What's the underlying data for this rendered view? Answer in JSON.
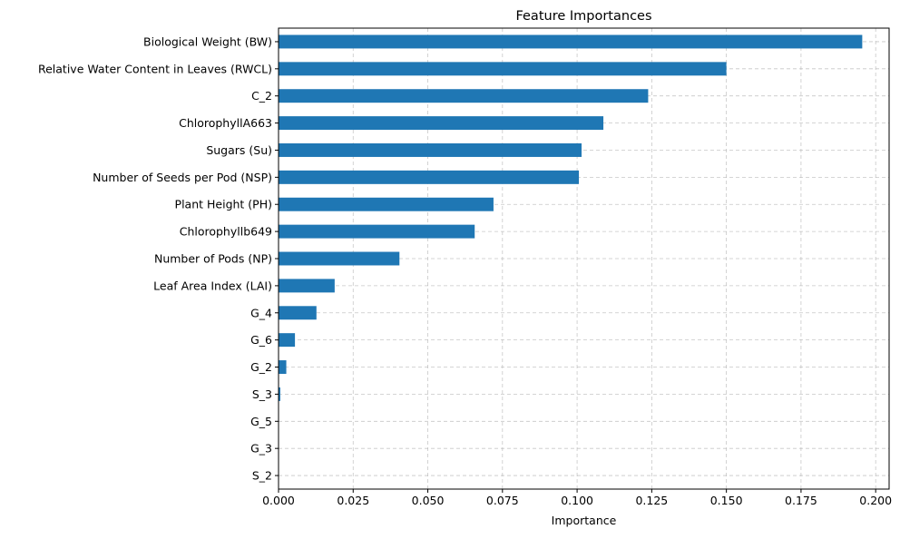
{
  "chart_data": {
    "type": "bar",
    "orientation": "horizontal",
    "title": "Feature Importances",
    "xlabel": "Importance",
    "ylabel": "",
    "xlim": [
      0,
      0.2045
    ],
    "x_ticks": [
      0.0,
      0.025,
      0.05,
      0.075,
      0.1,
      0.125,
      0.15,
      0.175,
      0.2
    ],
    "x_tick_labels": [
      "0.000",
      "0.025",
      "0.050",
      "0.075",
      "0.100",
      "0.125",
      "0.150",
      "0.175",
      "0.200"
    ],
    "grid": true,
    "grid_style": "dashed",
    "legend": "none",
    "bar_color": "#1f77b4",
    "categories": [
      "Biological Weight (BW)",
      "Relative Water Content in Leaves (RWCL)",
      "C_2",
      "ChlorophyllA663",
      "Sugars (Su)",
      "Number of Seeds per Pod (NSP)",
      "Plant Height (PH)",
      "Chlorophyllb649",
      "Number of Pods (NP)",
      "Leaf Area Index (LAI)",
      "G_4",
      "G_6",
      "G_2",
      "S_3",
      "G_5",
      "G_3",
      "S_2"
    ],
    "values": [
      0.1955,
      0.15,
      0.1238,
      0.1088,
      0.1015,
      0.1006,
      0.072,
      0.0657,
      0.0405,
      0.0188,
      0.0127,
      0.0055,
      0.0026,
      0.0006,
      0.0,
      0.0,
      0.0
    ]
  }
}
